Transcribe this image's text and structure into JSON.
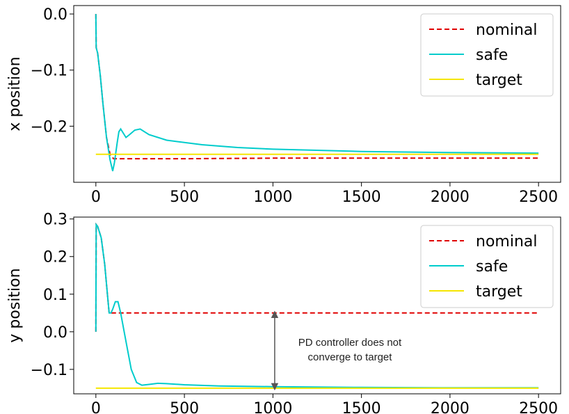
{
  "chart_data": [
    {
      "type": "line",
      "ylabel": "x position",
      "xlim": [
        -125,
        2625
      ],
      "ylim": [
        -0.3,
        0.015
      ],
      "xticks": [
        0,
        500,
        1000,
        1500,
        2000,
        2500
      ],
      "yticks": [
        0.0,
        -0.1,
        -0.2
      ],
      "ytick_labels": [
        "0.0",
        "−0.1",
        "−0.2"
      ],
      "xtick_labels": [
        "0",
        "500",
        "1000",
        "1500",
        "2000",
        "2500"
      ],
      "legend_position": "top-right",
      "series": [
        {
          "name": "nominal",
          "color": "#e00000",
          "style": "dashed",
          "points": [
            [
              0,
              0.0
            ],
            [
              2,
              -0.06
            ],
            [
              10,
              -0.07
            ],
            [
              25,
              -0.11
            ],
            [
              40,
              -0.16
            ],
            [
              60,
              -0.22
            ],
            [
              80,
              -0.25
            ],
            [
              100,
              -0.258
            ],
            [
              200,
              -0.258
            ],
            [
              500,
              -0.258
            ],
            [
              1000,
              -0.257
            ],
            [
              2000,
              -0.257
            ],
            [
              2500,
              -0.257
            ]
          ]
        },
        {
          "name": "safe",
          "color": "#00cccc",
          "style": "solid",
          "points": [
            [
              0,
              0.0
            ],
            [
              2,
              -0.06
            ],
            [
              10,
              -0.07
            ],
            [
              25,
              -0.11
            ],
            [
              40,
              -0.16
            ],
            [
              60,
              -0.22
            ],
            [
              80,
              -0.26
            ],
            [
              95,
              -0.28
            ],
            [
              105,
              -0.265
            ],
            [
              120,
              -0.23
            ],
            [
              130,
              -0.21
            ],
            [
              140,
              -0.205
            ],
            [
              150,
              -0.21
            ],
            [
              170,
              -0.22
            ],
            [
              190,
              -0.215
            ],
            [
              220,
              -0.207
            ],
            [
              250,
              -0.205
            ],
            [
              300,
              -0.215
            ],
            [
              400,
              -0.225
            ],
            [
              600,
              -0.233
            ],
            [
              800,
              -0.238
            ],
            [
              1000,
              -0.241
            ],
            [
              1500,
              -0.245
            ],
            [
              2000,
              -0.247
            ],
            [
              2500,
              -0.248
            ]
          ]
        },
        {
          "name": "target",
          "color": "#f5e600",
          "style": "solid",
          "points": [
            [
              0,
              -0.25
            ],
            [
              2500,
              -0.25
            ]
          ]
        }
      ]
    },
    {
      "type": "line",
      "ylabel": "y position",
      "xlim": [
        -125,
        2625
      ],
      "ylim": [
        -0.165,
        0.305
      ],
      "xticks": [
        0,
        500,
        1000,
        1500,
        2000,
        2500
      ],
      "yticks": [
        0.3,
        0.2,
        0.1,
        0.0,
        -0.1
      ],
      "ytick_labels": [
        "0.3",
        "0.2",
        "0.1",
        "0.0",
        "−0.1"
      ],
      "xtick_labels": [
        "0",
        "500",
        "1000",
        "1500",
        "2000",
        "2500"
      ],
      "legend_position": "top-right",
      "annotation": {
        "text_line1": "PD controller does not",
        "text_line2": "converge to target",
        "arrow_x": 1010,
        "arrow_y_from": 0.05,
        "arrow_y_to": -0.15
      },
      "series": [
        {
          "name": "nominal",
          "color": "#e00000",
          "style": "dashed",
          "points": [
            [
              0,
              0.0
            ],
            [
              2,
              0.285
            ],
            [
              10,
              0.28
            ],
            [
              30,
              0.25
            ],
            [
              50,
              0.18
            ],
            [
              65,
              0.1
            ],
            [
              75,
              0.05
            ],
            [
              100,
              0.05
            ],
            [
              500,
              0.05
            ],
            [
              1000,
              0.05
            ],
            [
              2000,
              0.05
            ],
            [
              2500,
              0.05
            ]
          ]
        },
        {
          "name": "safe",
          "color": "#00cccc",
          "style": "solid",
          "points": [
            [
              0,
              0.0
            ],
            [
              2,
              0.285
            ],
            [
              10,
              0.28
            ],
            [
              30,
              0.25
            ],
            [
              50,
              0.18
            ],
            [
              65,
              0.1
            ],
            [
              75,
              0.05
            ],
            [
              85,
              0.05
            ],
            [
              95,
              0.06
            ],
            [
              110,
              0.08
            ],
            [
              125,
              0.08
            ],
            [
              140,
              0.05
            ],
            [
              160,
              0.0
            ],
            [
              180,
              -0.05
            ],
            [
              200,
              -0.1
            ],
            [
              230,
              -0.135
            ],
            [
              260,
              -0.142
            ],
            [
              300,
              -0.14
            ],
            [
              350,
              -0.137
            ],
            [
              400,
              -0.138
            ],
            [
              500,
              -0.141
            ],
            [
              700,
              -0.144
            ],
            [
              1000,
              -0.146
            ],
            [
              1500,
              -0.148
            ],
            [
              2000,
              -0.149
            ],
            [
              2500,
              -0.149
            ]
          ]
        },
        {
          "name": "target",
          "color": "#f5e600",
          "style": "solid",
          "points": [
            [
              0,
              -0.15
            ],
            [
              2500,
              -0.15
            ]
          ]
        }
      ]
    }
  ]
}
